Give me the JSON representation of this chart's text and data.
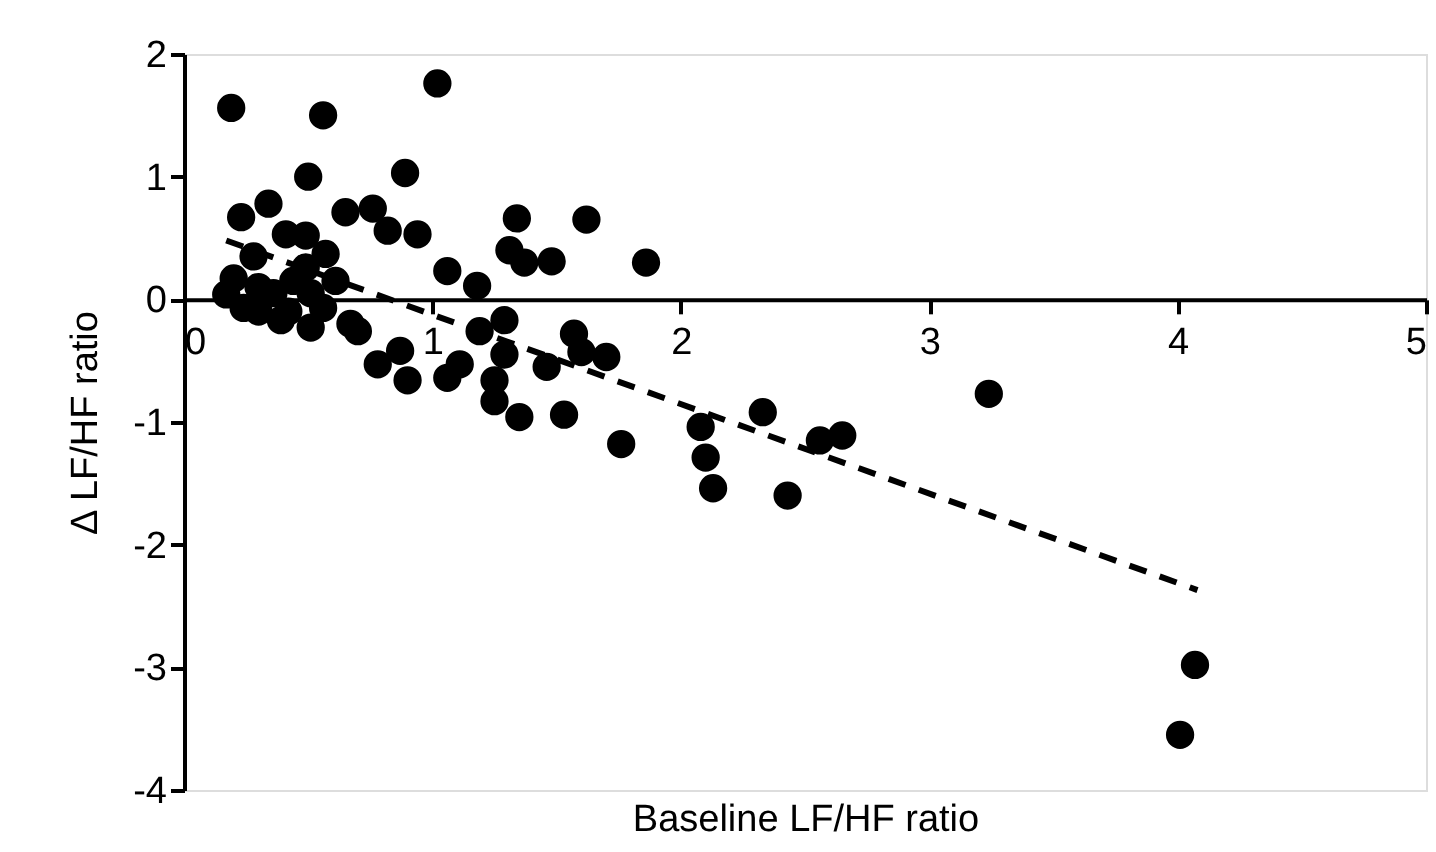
{
  "chart_data": {
    "type": "scatter",
    "xlabel": "Baseline LF/HF ratio",
    "ylabel": "Δ LF/HF ratio",
    "xlim": [
      0,
      5
    ],
    "xticks": [
      0,
      1,
      2,
      3,
      4,
      5
    ],
    "ylim": [
      -4,
      2
    ],
    "yticks": [
      -4,
      -3,
      -2,
      -1,
      0,
      1,
      2
    ],
    "grid": false,
    "marker": "circle",
    "series": [
      {
        "color": "#000000",
        "x": [
          0.19,
          0.56,
          1.02,
          0.5,
          0.89,
          0.34,
          0.23,
          0.65,
          0.76,
          0.82,
          0.94,
          0.41,
          0.49,
          1.34,
          1.62,
          1.31,
          1.37,
          1.48,
          1.06,
          1.18,
          0.28,
          0.57,
          0.17,
          0.24,
          0.2,
          0.3,
          0.39,
          0.36,
          0.44,
          0.49,
          0.51,
          0.51,
          0.56,
          0.61,
          0.3,
          0.42,
          0.67,
          0.7,
          0.78,
          0.87,
          0.9,
          1.06,
          1.11,
          1.19,
          1.29,
          1.29,
          1.25,
          1.25,
          1.35,
          1.46,
          1.53,
          1.57,
          1.6,
          1.7,
          1.76,
          1.86,
          2.08,
          2.1,
          2.13,
          2.33,
          2.43,
          2.56,
          2.65,
          3.24,
          4.07,
          4.01
        ],
        "values": [
          1.56,
          1.5,
          1.76,
          1.0,
          1.03,
          0.78,
          0.67,
          0.71,
          0.74,
          0.56,
          0.53,
          0.53,
          0.52,
          0.66,
          0.65,
          0.4,
          0.3,
          0.31,
          0.23,
          0.11,
          0.35,
          0.37,
          0.04,
          -0.07,
          0.17,
          0.1,
          -0.17,
          0.05,
          0.15,
          0.26,
          0.05,
          -0.23,
          -0.07,
          0.15,
          -0.1,
          -0.1,
          -0.2,
          -0.26,
          -0.53,
          -0.42,
          -0.66,
          -0.64,
          -0.53,
          -0.26,
          -0.17,
          -0.45,
          -0.66,
          -0.83,
          -0.96,
          -0.55,
          -0.94,
          -0.28,
          -0.43,
          -0.47,
          -1.18,
          0.3,
          -1.04,
          -1.29,
          -1.54,
          -0.92,
          -1.6,
          -1.15,
          -1.11,
          -0.77,
          -2.98,
          -3.55
        ]
      },
      {
        "type": "line",
        "color": "#000000",
        "line_style": "dashed",
        "marker": "none",
        "x": [
          0.17,
          4.08
        ],
        "values": [
          0.48,
          -2.37
        ]
      }
    ]
  }
}
